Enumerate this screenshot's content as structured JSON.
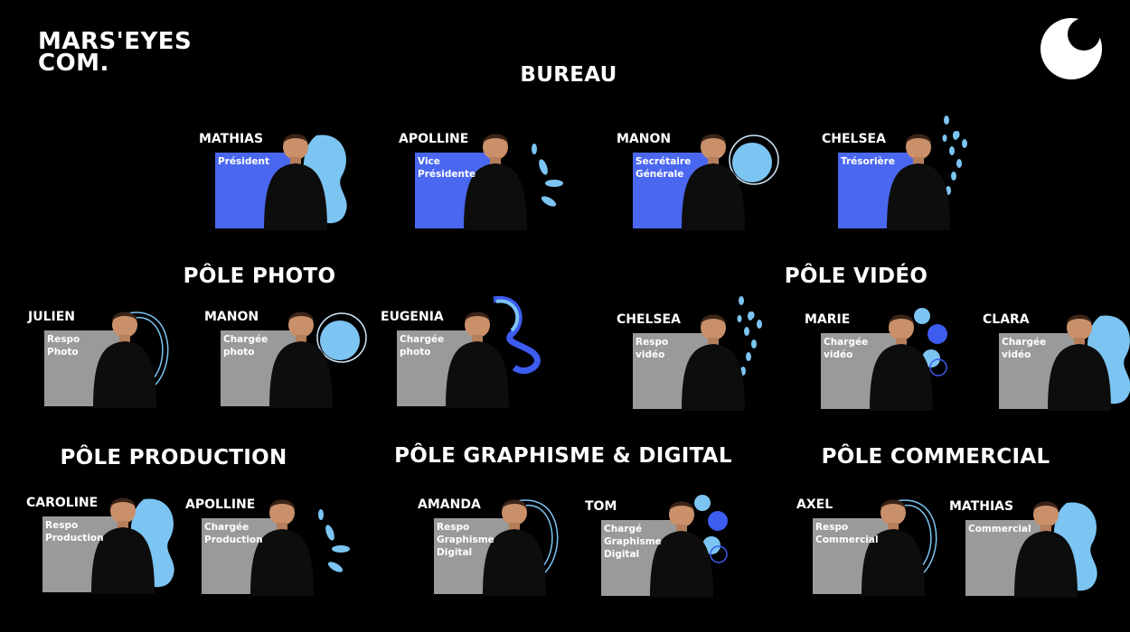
{
  "logo": {
    "line1": "MARS'EYES",
    "line2": "COM."
  },
  "colors": {
    "background": "#000000",
    "blue_panel": "#4a67f0",
    "grey_panel": "#9a9a9a",
    "light_blue": "#7cc4f2",
    "royal_blue": "#3d5cf0"
  },
  "sections": {
    "bureau": "BUREAU",
    "photo": "PÔLE PHOTO",
    "video": "PÔLE VIDÉO",
    "production": "PÔLE PRODUCTION",
    "graphisme": "PÔLE GRAPHISME & DIGITAL",
    "commercial": "PÔLE COMMERCIAL"
  },
  "members": [
    {
      "name": "MATHIAS",
      "role": "Président"
    },
    {
      "name": "APOLLINE",
      "role": "Vice\nPrésidente"
    },
    {
      "name": "MANON",
      "role": "Secrétaire\nGénérale"
    },
    {
      "name": "CHELSEA",
      "role": "Trésorière"
    },
    {
      "name": "JULIEN",
      "role": "Respo\nPhoto"
    },
    {
      "name": "MANON",
      "role": "Chargée\nphoto"
    },
    {
      "name": "EUGENIA",
      "role": "Chargée\nphoto"
    },
    {
      "name": "CHELSEA",
      "role": "Respo\nvidéo"
    },
    {
      "name": "MARIE",
      "role": "Chargée\nvidéo"
    },
    {
      "name": "CLARA",
      "role": "Chargée\nvidéo"
    },
    {
      "name": "CAROLINE",
      "role": "Respo\nProduction"
    },
    {
      "name": "APOLLINE",
      "role": "Chargée\nProduction"
    },
    {
      "name": "AMANDA",
      "role": "Respo\nGraphisme\nDigital"
    },
    {
      "name": "TOM",
      "role": "Chargé\nGraphisme\nDigital"
    },
    {
      "name": "AXEL",
      "role": "Respo\nCommercial"
    },
    {
      "name": "MATHIAS",
      "role": "Commercial"
    }
  ]
}
